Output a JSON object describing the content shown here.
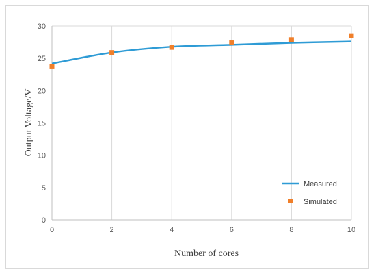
{
  "chart_data": {
    "type": "line",
    "xlabel": "Number of cores",
    "ylabel": "Output Voltage/V",
    "xlim": [
      0,
      10
    ],
    "ylim": [
      0,
      30
    ],
    "x_ticks": [
      0,
      2,
      4,
      6,
      8,
      10
    ],
    "y_ticks": [
      0,
      5,
      10,
      15,
      20,
      25,
      30
    ],
    "grid": "vertical",
    "legend_position": "bottom-right",
    "series": [
      {
        "name": "Measured",
        "kind": "line",
        "color": "#2E9BD5",
        "x": [
          0,
          2,
          4,
          6,
          8,
          10
        ],
        "y": [
          24.2,
          25.9,
          26.8,
          27.1,
          27.4,
          27.6
        ]
      },
      {
        "name": "Simulated",
        "kind": "marker",
        "color": "#F07F2A",
        "x": [
          0,
          2,
          4,
          6,
          8,
          10
        ],
        "y": [
          23.7,
          25.9,
          26.7,
          27.4,
          27.9,
          28.5
        ]
      }
    ]
  }
}
